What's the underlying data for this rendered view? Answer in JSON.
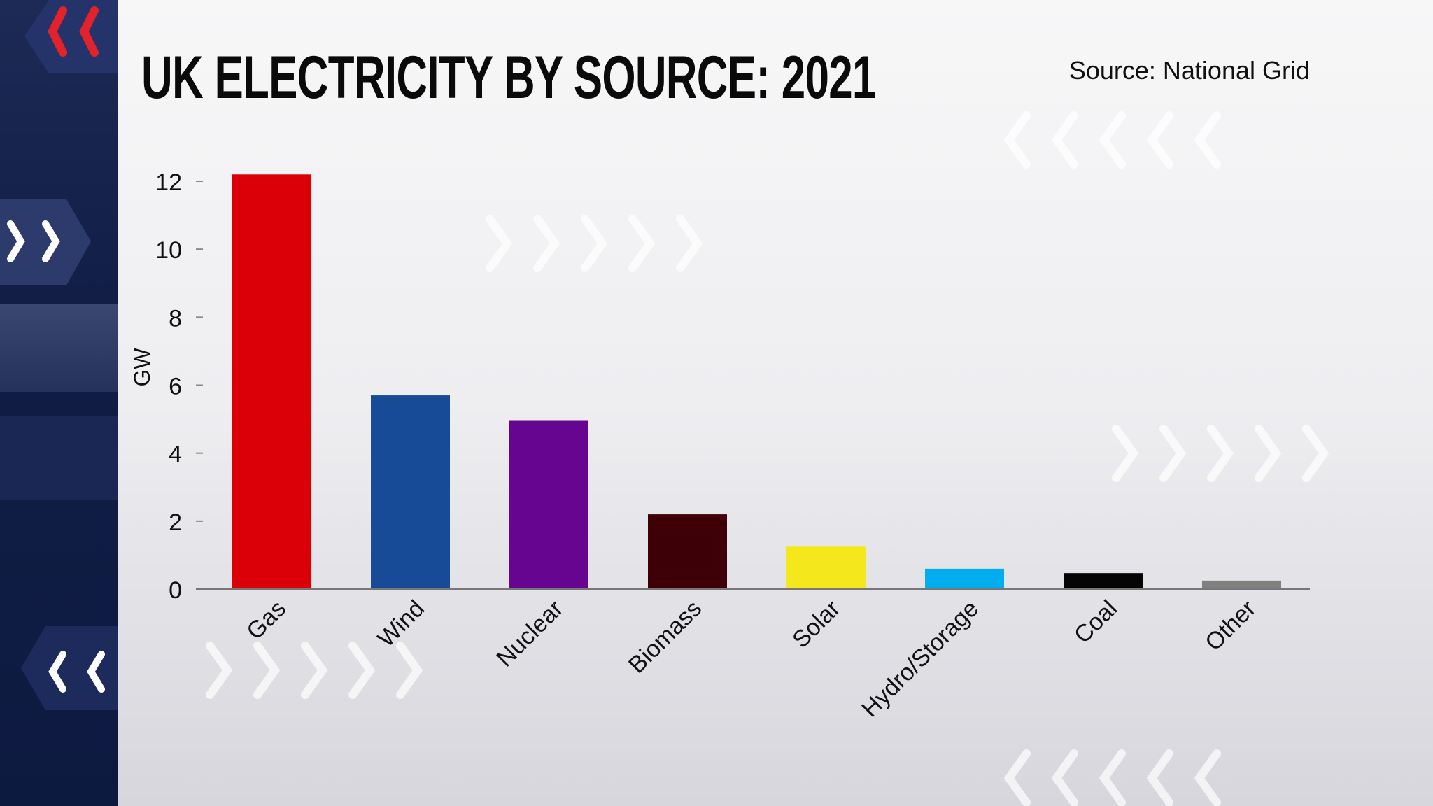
{
  "header": {
    "title": "UK ELECTRICITY BY SOURCE: 2021",
    "source": "Source: National Grid"
  },
  "chart_data": {
    "type": "bar",
    "title": "UK ELECTRICITY BY SOURCE: 2021",
    "xlabel": "",
    "ylabel": "GW",
    "ylim": [
      0,
      12
    ],
    "yticks": [
      0,
      2,
      4,
      6,
      8,
      10,
      12
    ],
    "grid": false,
    "categories": [
      "Gas",
      "Wind",
      "Nuclear",
      "Biomass",
      "Solar",
      "Hydro/Storage",
      "Coal",
      "Other"
    ],
    "values": [
      12.2,
      5.7,
      4.95,
      2.2,
      1.25,
      0.6,
      0.47,
      0.25
    ],
    "colors": [
      "#db0007",
      "#174b97",
      "#660590",
      "#3e0006",
      "#f4e81c",
      "#00aeef",
      "#050505",
      "#808080"
    ]
  },
  "colors": {
    "sidebar": "#111d45",
    "accent": "#e3232b"
  }
}
